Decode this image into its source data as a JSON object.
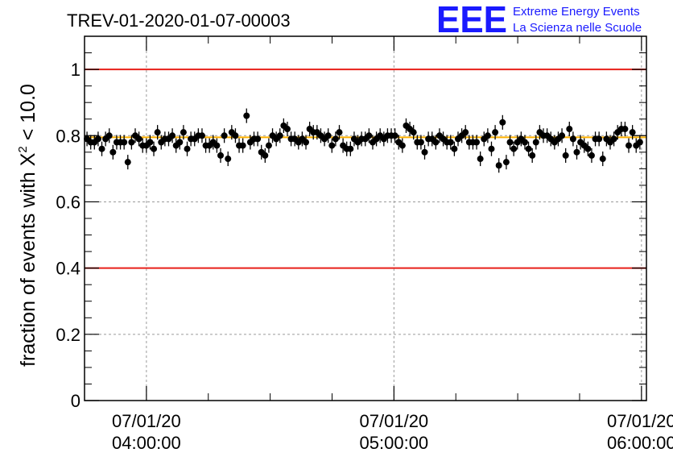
{
  "chart_data": {
    "type": "scatter",
    "title": "TREV-01-2020-01-07-00003",
    "ylabel_prefix": "fraction of events with ",
    "ylabel_symbol": "X",
    "ylabel_sup": "2",
    "ylabel_suffix": " < 10.0",
    "ylim": [
      0,
      1.1
    ],
    "xlim_hours": [
      3.75,
      6.02
    ],
    "y_ticks": [
      {
        "v": 0,
        "label": "0"
      },
      {
        "v": 0.2,
        "label": "0.2"
      },
      {
        "v": 0.4,
        "label": "0.4"
      },
      {
        "v": 0.6,
        "label": "0.6"
      },
      {
        "v": 0.8,
        "label": "0.8"
      },
      {
        "v": 1.0,
        "label": "1"
      }
    ],
    "x_ticks": [
      {
        "v": 4.0,
        "date": "07/01/20",
        "time": "04:00:00"
      },
      {
        "v": 5.0,
        "date": "07/01/20",
        "time": "05:00:00"
      },
      {
        "v": 6.0,
        "date": "07/01/20",
        "time": "06:00:00"
      }
    ],
    "grid": true,
    "reference_lines": [
      {
        "y": 1.0,
        "color": "#e8201a"
      },
      {
        "y": 0.4,
        "color": "#e8201a"
      },
      {
        "y": 0.795,
        "color": "#ffb000"
      }
    ],
    "series": [
      {
        "color": "#000000",
        "error": 0.022,
        "values": [
          0.79,
          0.78,
          0.78,
          0.79,
          0.76,
          0.79,
          0.8,
          0.75,
          0.78,
          0.78,
          0.78,
          0.72,
          0.78,
          0.8,
          0.79,
          0.77,
          0.77,
          0.78,
          0.76,
          0.81,
          0.78,
          0.79,
          0.79,
          0.8,
          0.77,
          0.78,
          0.81,
          0.76,
          0.79,
          0.79,
          0.8,
          0.8,
          0.77,
          0.77,
          0.78,
          0.77,
          0.74,
          0.8,
          0.73,
          0.81,
          0.8,
          0.77,
          0.77,
          0.86,
          0.78,
          0.79,
          0.79,
          0.75,
          0.74,
          0.77,
          0.8,
          0.79,
          0.8,
          0.83,
          0.82,
          0.79,
          0.79,
          0.78,
          0.79,
          0.78,
          0.82,
          0.81,
          0.81,
          0.8,
          0.79,
          0.8,
          0.77,
          0.79,
          0.81,
          0.77,
          0.76,
          0.76,
          0.79,
          0.78,
          0.79,
          0.79,
          0.8,
          0.78,
          0.79,
          0.8,
          0.79,
          0.8,
          0.8,
          0.8,
          0.78,
          0.77,
          0.83,
          0.82,
          0.81,
          0.78,
          0.78,
          0.75,
          0.79,
          0.79,
          0.78,
          0.8,
          0.79,
          0.78,
          0.78,
          0.76,
          0.79,
          0.8,
          0.81,
          0.78,
          0.78,
          0.78,
          0.73,
          0.79,
          0.8,
          0.76,
          0.81,
          0.71,
          0.84,
          0.72,
          0.78,
          0.76,
          0.78,
          0.79,
          0.78,
          0.76,
          0.74,
          0.78,
          0.81,
          0.8,
          0.8,
          0.79,
          0.78,
          0.79,
          0.8,
          0.74,
          0.82,
          0.79,
          0.75,
          0.78,
          0.77,
          0.76,
          0.74,
          0.79,
          0.79,
          0.73,
          0.79,
          0.78,
          0.79,
          0.81,
          0.82,
          0.82,
          0.77,
          0.81,
          0.77,
          0.78
        ],
        "x_start_hours": 3.76,
        "x_step_hours": 0.01499
      }
    ]
  },
  "logo": {
    "mark": "EEE",
    "line1": "Extreme Energy Events",
    "line2": "La Scienza nelle Scuole"
  }
}
